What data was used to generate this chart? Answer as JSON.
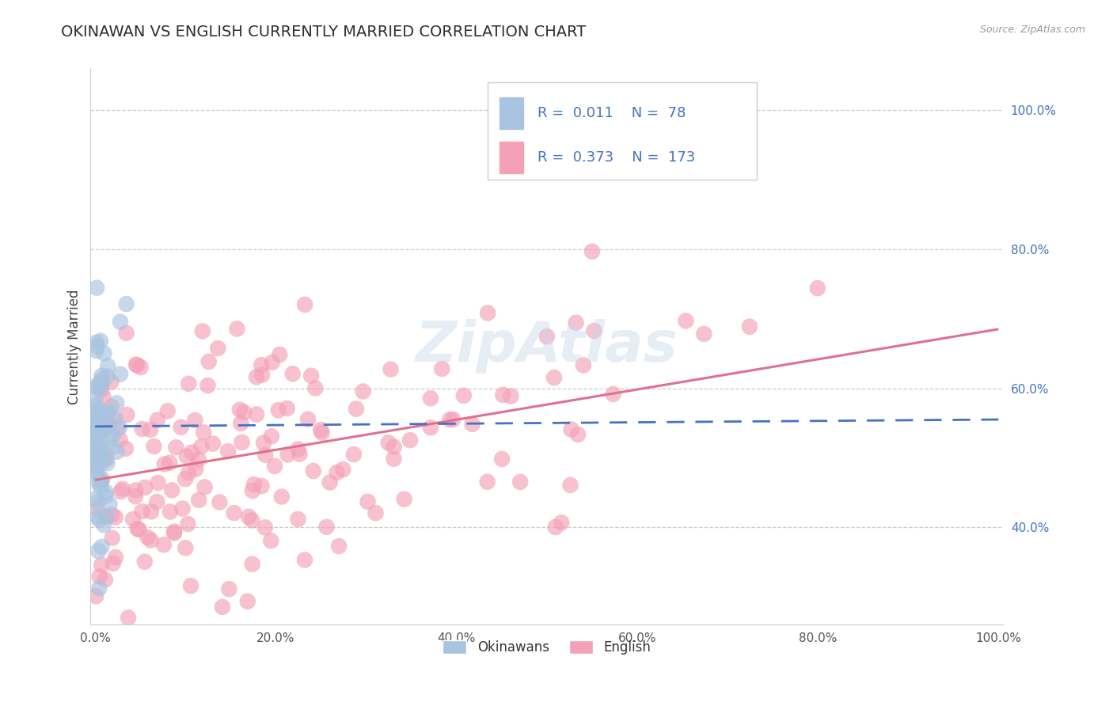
{
  "title": "OKINAWAN VS ENGLISH CURRENTLY MARRIED CORRELATION CHART",
  "source": "Source: ZipAtlas.com",
  "ylabel": "Currently Married",
  "xlim": [
    -0.005,
    1.005
  ],
  "ylim": [
    0.26,
    1.06
  ],
  "x_ticks": [
    0.0,
    0.2,
    0.4,
    0.6,
    0.8,
    1.0
  ],
  "x_tick_labels": [
    "0.0%",
    "20.0%",
    "40.0%",
    "60.0%",
    "80.0%",
    "100.0%"
  ],
  "y_ticks": [
    0.4,
    0.6,
    0.8,
    1.0
  ],
  "y_tick_labels": [
    "40.0%",
    "60.0%",
    "80.0%",
    "100.0%"
  ],
  "grid_color": "#cccccc",
  "background_color": "#ffffff",
  "okinawan_color": "#a8c4e0",
  "english_color": "#f4a0b8",
  "okinawan_line_color": "#4472c4",
  "english_line_color": "#e07090",
  "R_okinawan": 0.011,
  "N_okinawan": 78,
  "R_english": 0.373,
  "N_english": 173,
  "legend_labels": [
    "Okinawans",
    "English"
  ],
  "watermark": "ZipAtlas",
  "title_color": "#2f2f2f",
  "title_fontsize": 14,
  "tick_color": "#4472c4",
  "ok_seed": 42,
  "en_seed": 7,
  "ok_line_start_y": 0.545,
  "ok_line_end_y": 0.555,
  "en_line_start_y": 0.468,
  "en_line_end_y": 0.685
}
